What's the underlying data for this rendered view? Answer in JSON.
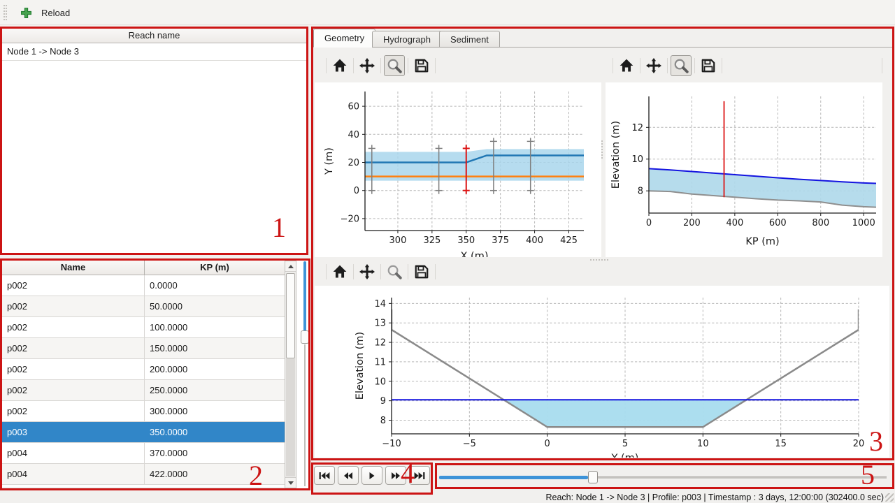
{
  "app": {
    "statusbar_text": "Reach: Node 1 -> Node 3 | Profile: p003 | Timestamp : 3 days, 12:00:00 (302400.0 sec)"
  },
  "toolbar": {
    "reload_label": "Reload"
  },
  "reach_panel": {
    "header": "Reach name",
    "items": [
      "Node 1 -> Node 3"
    ]
  },
  "profile_table": {
    "columns": [
      "Name",
      "KP (m)"
    ],
    "rows": [
      [
        "p002",
        "0.0000"
      ],
      [
        "p002",
        "50.0000"
      ],
      [
        "p002",
        "100.0000"
      ],
      [
        "p002",
        "150.0000"
      ],
      [
        "p002",
        "200.0000"
      ],
      [
        "p002",
        "250.0000"
      ],
      [
        "p002",
        "300.0000"
      ],
      [
        "p003",
        "350.0000"
      ],
      [
        "p004",
        "370.0000"
      ],
      [
        "p004",
        "422.0000"
      ]
    ],
    "selected_row_index": 7,
    "selection_color": "#3186c8"
  },
  "tab_bar": {
    "tabs": [
      {
        "label": "Geometry",
        "active": true
      },
      {
        "label": "Hydrograph",
        "active": false
      },
      {
        "label": "Sediment",
        "active": false
      }
    ]
  },
  "plot_toolbars": {
    "buttons": [
      "home",
      "pan",
      "zoom",
      "save"
    ],
    "zoom_toggled": [
      true,
      true,
      false
    ]
  },
  "playback": {
    "buttons": [
      "skip-to-start",
      "step-back",
      "play",
      "step-forward",
      "skip-to-end"
    ]
  },
  "time_slider": {
    "fraction": 0.35,
    "accent": "#3d93d8"
  },
  "profile_slider": {
    "fraction": 0.33,
    "accent": "#3d93d8"
  },
  "annotations": {
    "color": "#cc1414",
    "labels": [
      "1",
      "2",
      "3",
      "4",
      "5"
    ]
  },
  "chart_data": [
    {
      "id": "plan-view",
      "type": "line",
      "title": "",
      "xlabel": "X (m)",
      "ylabel": "Y (m)",
      "xlim": [
        276,
        436
      ],
      "ylim": [
        -28.5,
        70.5
      ],
      "xticks": [
        300,
        325,
        350,
        375,
        400,
        425
      ],
      "yticks": [
        -20,
        0,
        20,
        40,
        60
      ],
      "grid": true,
      "fills": [
        {
          "name": "channel-band",
          "color": "#a9d6ec",
          "opacity": 0.85,
          "pts_x": [
            276,
            350,
            365,
            436,
            436,
            276
          ],
          "pts_y": [
            27.5,
            27.5,
            29.5,
            29.5,
            7,
            7
          ]
        }
      ],
      "series": [
        {
          "name": "bank-line",
          "color": "#2077b4",
          "width": 2.5,
          "x": [
            276,
            350,
            365,
            436
          ],
          "y": [
            20,
            20,
            25,
            25
          ]
        },
        {
          "name": "center-line",
          "color": "#ff7f0e",
          "width": 2.5,
          "x": [
            276,
            436
          ],
          "y": [
            10,
            10
          ]
        }
      ],
      "vlines": [
        {
          "x": 281,
          "y0": 0,
          "y1": 30,
          "color": "#7f7f7f",
          "width": 1.5,
          "caps": true
        },
        {
          "x": 330,
          "y0": 0,
          "y1": 30,
          "color": "#7f7f7f",
          "width": 1.5,
          "caps": true
        },
        {
          "x": 350,
          "y0": 0,
          "y1": 30,
          "color": "#dc1414",
          "width": 2,
          "caps": true
        },
        {
          "x": 370,
          "y0": 0,
          "y1": 35,
          "color": "#7f7f7f",
          "width": 1.5,
          "caps": true
        },
        {
          "x": 397,
          "y0": 0,
          "y1": 35,
          "color": "#7f7f7f",
          "width": 1.5,
          "caps": true
        }
      ]
    },
    {
      "id": "longitudinal-profile",
      "type": "line",
      "title": "",
      "xlabel": "KP (m)",
      "ylabel": "Elevation (m)",
      "xlim": [
        0,
        1058
      ],
      "ylim": [
        6.6,
        13.95
      ],
      "xticks": [
        0,
        200,
        400,
        600,
        800,
        1000
      ],
      "yticks": [
        8,
        10,
        12
      ],
      "grid": true,
      "fills": [
        {
          "name": "water-fill",
          "color": "#aed8ea",
          "opacity": 0.9,
          "between": {
            "x": [
              0,
              100,
              200,
              300,
              350,
              400,
              500,
              600,
              700,
              800,
              900,
              1000,
              1058
            ],
            "y1": [
              9.4,
              9.32,
              9.22,
              9.12,
              9.07,
              9.02,
              8.92,
              8.82,
              8.73,
              8.65,
              8.57,
              8.5,
              8.47
            ],
            "y2": [
              8.0,
              7.96,
              7.8,
              7.7,
              7.65,
              7.6,
              7.5,
              7.42,
              7.37,
              7.3,
              7.1,
              7.0,
              6.97
            ]
          }
        }
      ],
      "series": [
        {
          "name": "water-surface",
          "color": "#1414e0",
          "width": 2,
          "x": [
            0,
            100,
            200,
            300,
            350,
            400,
            500,
            600,
            700,
            800,
            900,
            1000,
            1058
          ],
          "y": [
            9.4,
            9.32,
            9.22,
            9.12,
            9.07,
            9.02,
            8.92,
            8.82,
            8.73,
            8.65,
            8.57,
            8.5,
            8.47
          ]
        },
        {
          "name": "bed-line",
          "color": "#8f8f8f",
          "width": 2,
          "x": [
            0,
            100,
            200,
            300,
            350,
            400,
            500,
            600,
            700,
            800,
            900,
            1000,
            1058
          ],
          "y": [
            8.0,
            7.96,
            7.8,
            7.7,
            7.65,
            7.6,
            7.5,
            7.42,
            7.37,
            7.3,
            7.1,
            7.0,
            6.97
          ]
        }
      ],
      "vlines": [
        {
          "x": 350,
          "y0": 7.6,
          "y1": 13.65,
          "color": "#dc1414",
          "width": 1.8,
          "caps": false
        }
      ]
    },
    {
      "id": "cross-section",
      "type": "line",
      "title": "",
      "xlabel": "Y (m)",
      "ylabel": "Elevation (m)",
      "xlim": [
        -10,
        20
      ],
      "ylim": [
        7.3,
        14.3
      ],
      "xticks": [
        -10,
        -5,
        0,
        5,
        10,
        15,
        20
      ],
      "yticks": [
        8,
        9,
        10,
        11,
        12,
        13,
        14
      ],
      "grid": true,
      "fills": [
        {
          "name": "water-area",
          "color": "#a8dcee",
          "opacity": 0.95,
          "pts_x": [
            -2.8,
            0,
            10,
            12.8
          ],
          "pts_y": [
            9.05,
            7.65,
            7.65,
            9.05
          ]
        }
      ],
      "series": [
        {
          "name": "bed-profile",
          "color": "#8a8a8a",
          "width": 2.5,
          "x": [
            -10,
            -10,
            0,
            10,
            20,
            20
          ],
          "y": [
            13.7,
            12.65,
            7.65,
            7.65,
            12.65,
            13.7
          ]
        },
        {
          "name": "water-level",
          "color": "#1414e0",
          "width": 2,
          "x": [
            -10,
            20
          ],
          "y": [
            9.05,
            9.05
          ]
        }
      ],
      "vlines": []
    }
  ]
}
